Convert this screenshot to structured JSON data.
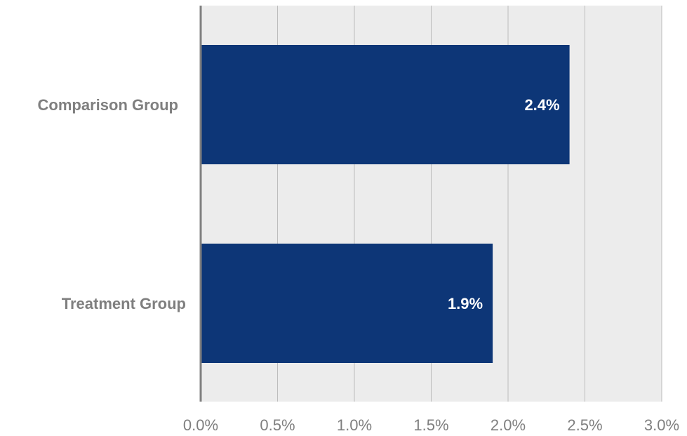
{
  "chart_data": {
    "type": "bar",
    "orientation": "horizontal",
    "categories": [
      "Comparison Group",
      "Treatment Group"
    ],
    "values": [
      2.4,
      1.9
    ],
    "data_labels": [
      "2.4%",
      "1.9%"
    ],
    "xlim": [
      0,
      3.0
    ],
    "x_ticks": [
      0,
      0.5,
      1.0,
      1.5,
      2.0,
      2.5,
      3.0
    ],
    "x_tick_labels": [
      "0.0%",
      "0.5%",
      "1.0%",
      "1.5%",
      "2.0%",
      "2.5%",
      "3.0%"
    ],
    "title": "",
    "xlabel": "",
    "ylabel": "",
    "grid": "vertical",
    "legend": "none",
    "colors": {
      "bar": "#0d3677",
      "plot_background": "#ececec",
      "gridline": "#bdbdbd",
      "axis_line": "#7f7f7f",
      "category_text": "#7f7f7f",
      "tick_text": "#7f7f7f",
      "data_label_text": "#ffffff"
    }
  }
}
